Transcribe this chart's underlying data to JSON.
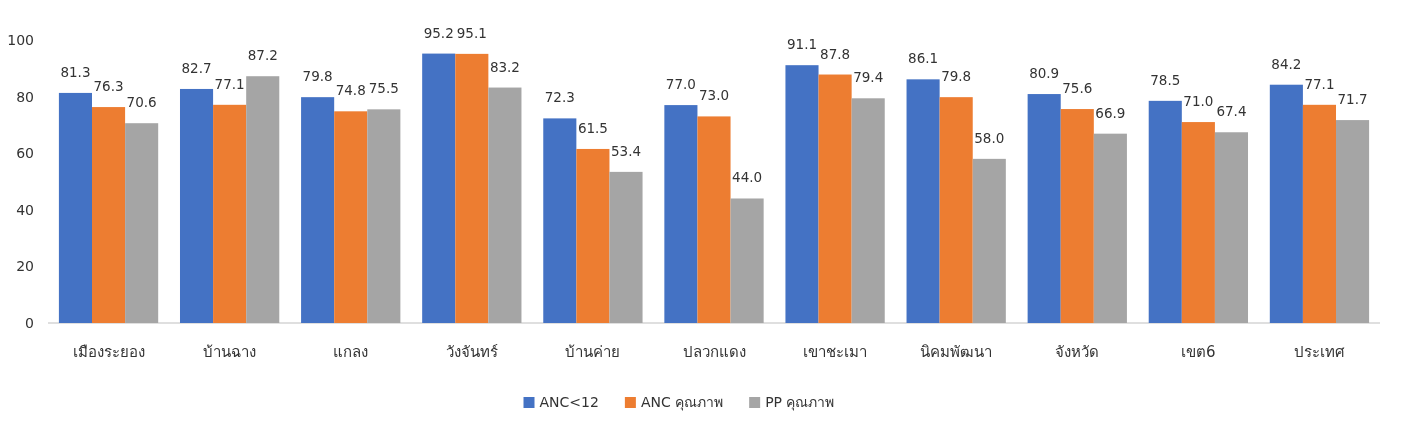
{
  "chart_data": {
    "type": "bar",
    "categories": [
      "เมืองระยอง",
      "บ้านฉาง",
      "แกลง",
      "วังจันทร์",
      "บ้านค่าย",
      "ปลวกแดง",
      "เขาชะเมา",
      "นิคมพัฒนา",
      "จังหวัด",
      "เขต6",
      "ประเทศ"
    ],
    "series": [
      {
        "name": "ANC<12",
        "color": "#4472c4",
        "values": [
          81.3,
          82.7,
          79.8,
          95.2,
          72.3,
          77.0,
          91.1,
          86.1,
          80.9,
          78.5,
          84.2
        ],
        "value_labels": [
          "81.3",
          "82.7",
          "79.8",
          "95.2",
          "72.3",
          "77.0",
          "91.1",
          "86.1",
          "80.9",
          "78.5",
          "84.2"
        ]
      },
      {
        "name": "ANC คุณภาพ",
        "color": "#ed7d31",
        "values": [
          76.3,
          77.1,
          74.8,
          95.1,
          61.5,
          73.0,
          87.8,
          79.8,
          75.6,
          71.0,
          77.1
        ],
        "value_labels": [
          "76.3",
          "77.1",
          "74.8",
          "95.1",
          "61.5",
          "73.0",
          "87.8",
          "79.8",
          "75.6",
          "71.0",
          "77.1"
        ]
      },
      {
        "name": "PP คุณภาพ",
        "color": "#a5a5a5",
        "values": [
          70.6,
          87.2,
          75.5,
          83.2,
          53.4,
          44.0,
          79.4,
          58.0,
          66.9,
          67.4,
          71.7
        ],
        "value_labels": [
          "70.6",
          "87.2",
          "75.5",
          "83.2",
          "53.4",
          "44.0",
          "79.4",
          "58.0",
          "66.9",
          "67.4",
          "71.7"
        ]
      }
    ],
    "ylim": [
      0,
      100
    ],
    "yticks": [
      0,
      20,
      40,
      60,
      80,
      100
    ],
    "legend": "bottom",
    "grid": false
  }
}
